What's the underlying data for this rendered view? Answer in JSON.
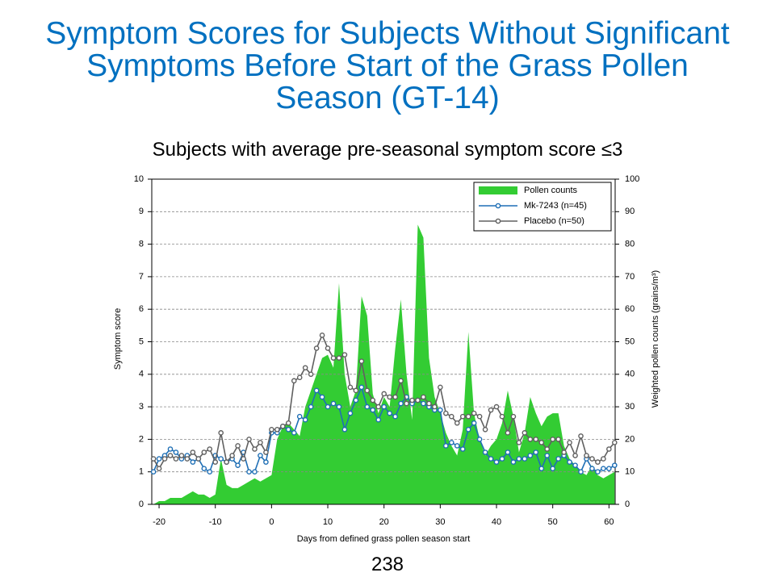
{
  "chart_data": {
    "type": "line",
    "title": "Symptom Scores for Subjects Without Significant Symptoms Before Start of the Grass Pollen Season (GT-14)",
    "subtitle": "Subjects with average pre-seasonal symptom score ≤3",
    "xlabel": "Days from defined grass pollen season start",
    "ylabel": "Symptom score",
    "y2label": "Weighted pollen counts (grains/m³)",
    "page_number": "238",
    "xlim": [
      -21.3,
      61.1
    ],
    "xticks": [
      -20,
      -10,
      0,
      10,
      20,
      30,
      40,
      50,
      60
    ],
    "ylim": [
      0,
      10
    ],
    "yticks": [
      0,
      1,
      2,
      3,
      4,
      5,
      6,
      7,
      8,
      9,
      10
    ],
    "y2lim": [
      0,
      100
    ],
    "y2ticks": [
      0,
      10,
      20,
      30,
      40,
      50,
      60,
      70,
      80,
      90,
      100
    ],
    "grid": true,
    "legend": "upper right",
    "x": [
      -21,
      -20,
      -19,
      -18,
      -17,
      -16,
      -15,
      -14,
      -13,
      -12,
      -11,
      -10,
      -9,
      -8,
      -7,
      -6,
      -5,
      -4,
      -3,
      -2,
      -1,
      0,
      1,
      2,
      3,
      4,
      5,
      6,
      7,
      8,
      9,
      10,
      11,
      12,
      13,
      14,
      15,
      16,
      17,
      18,
      19,
      20,
      21,
      22,
      23,
      24,
      25,
      26,
      27,
      28,
      29,
      30,
      31,
      32,
      33,
      34,
      35,
      36,
      37,
      38,
      39,
      40,
      41,
      42,
      43,
      44,
      45,
      46,
      47,
      48,
      49,
      50,
      51,
      52,
      53,
      54,
      55,
      56,
      57,
      58,
      59,
      60,
      61
    ],
    "series": [
      {
        "name": "Pollen counts",
        "type": "area",
        "axis": "y2",
        "color": "#33cc33",
        "values": [
          0,
          1,
          1,
          2,
          2,
          2,
          3,
          4,
          3,
          3,
          2,
          3,
          14,
          6,
          5,
          5,
          6,
          7,
          8,
          7,
          8,
          9,
          20,
          24,
          25,
          23,
          21,
          30,
          35,
          40,
          45,
          46,
          42,
          68,
          40,
          30,
          35,
          64,
          58,
          34,
          28,
          33,
          30,
          48,
          63,
          40,
          26,
          86,
          82,
          45,
          33,
          28,
          22,
          18,
          15,
          23,
          53,
          28,
          20,
          15,
          18,
          20,
          25,
          35,
          27,
          16,
          22,
          33,
          28,
          24,
          27,
          28,
          28,
          18,
          14,
          12,
          10,
          9,
          12,
          9,
          8,
          9,
          10
        ]
      },
      {
        "name": "Mk-7243 (n=45)",
        "type": "line",
        "color": "#1f6fb5",
        "values": [
          1.0,
          1.4,
          1.5,
          1.7,
          1.6,
          1.4,
          1.5,
          1.3,
          1.4,
          1.1,
          1.0,
          1.5,
          1.4,
          1.3,
          1.4,
          1.2,
          1.6,
          1.0,
          1.0,
          1.5,
          1.3,
          2.2,
          2.2,
          2.4,
          2.3,
          2.2,
          2.7,
          2.6,
          3.0,
          3.5,
          3.3,
          3.0,
          3.1,
          3.0,
          2.3,
          2.8,
          3.2,
          3.6,
          3.0,
          2.9,
          2.6,
          3.0,
          2.8,
          2.7,
          3.1,
          3.3,
          3.1,
          3.2,
          3.1,
          3.0,
          2.9,
          2.9,
          1.8,
          1.9,
          1.8,
          1.7,
          2.3,
          2.5,
          2.0,
          1.6,
          1.4,
          1.3,
          1.4,
          1.6,
          1.3,
          1.4,
          1.4,
          1.5,
          1.6,
          1.1,
          1.5,
          1.1,
          1.4,
          1.5,
          1.3,
          1.2,
          1.0,
          1.4,
          1.1,
          1.0,
          1.1,
          1.1,
          1.2
        ]
      },
      {
        "name": "Placebo (n=50)",
        "type": "line",
        "color": "#606060",
        "values": [
          1.4,
          1.1,
          1.4,
          1.5,
          1.4,
          1.5,
          1.4,
          1.6,
          1.4,
          1.6,
          1.7,
          1.3,
          2.2,
          1.3,
          1.5,
          1.8,
          1.4,
          2.0,
          1.7,
          1.9,
          1.6,
          2.3,
          2.3,
          2.4,
          2.5,
          3.8,
          3.9,
          4.2,
          4.0,
          4.8,
          5.2,
          4.8,
          4.5,
          4.5,
          4.6,
          3.6,
          3.5,
          4.4,
          3.5,
          3.2,
          3.0,
          3.4,
          3.3,
          3.3,
          3.8,
          3.1,
          3.2,
          3.2,
          3.3,
          3.1,
          3.0,
          3.6,
          2.8,
          2.7,
          2.5,
          2.7,
          2.7,
          2.8,
          2.7,
          2.3,
          2.9,
          3.0,
          2.7,
          2.2,
          2.7,
          1.9,
          2.2,
          2.0,
          2.0,
          1.9,
          1.7,
          2.0,
          2.0,
          1.6,
          1.9,
          1.5,
          2.1,
          1.5,
          1.4,
          1.3,
          1.4,
          1.7,
          1.9
        ]
      }
    ]
  }
}
